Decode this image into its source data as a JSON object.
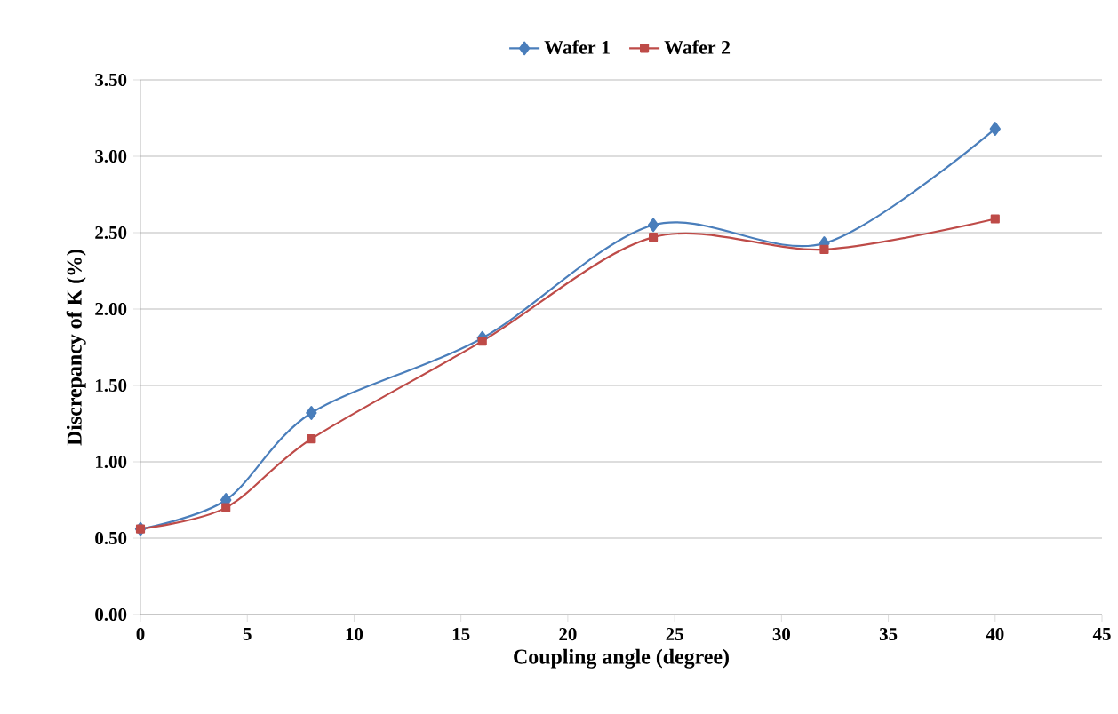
{
  "chart_data": {
    "type": "line",
    "xlabel": "Coupling angle (degree)",
    "ylabel": "Discrepancy of K (%)",
    "x": [
      0,
      4,
      8,
      16,
      24,
      32,
      40
    ],
    "series": [
      {
        "name": "Wafer 1",
        "color": "#4a7ebb",
        "marker": "diamond",
        "values": [
          0.56,
          0.75,
          1.32,
          1.81,
          2.55,
          2.43,
          3.18
        ]
      },
      {
        "name": "Wafer 2",
        "color": "#be4b48",
        "marker": "square",
        "values": [
          0.56,
          0.7,
          1.15,
          1.79,
          2.47,
          2.39,
          2.59
        ]
      }
    ],
    "xlim": [
      0,
      45
    ],
    "xticks": [
      0,
      5,
      10,
      15,
      20,
      25,
      30,
      35,
      40,
      45
    ],
    "ylim": [
      0,
      3.5
    ],
    "yticks": [
      {
        "value": 0,
        "label": "0.00"
      },
      {
        "value": 0.5,
        "label": "0.50"
      },
      {
        "value": 1,
        "label": "1.00"
      },
      {
        "value": 1.5,
        "label": "1.50"
      },
      {
        "value": 2,
        "label": "2.00"
      },
      {
        "value": 2.5,
        "label": "2.50"
      },
      {
        "value": 3,
        "label": "3.00"
      },
      {
        "value": 3.5,
        "label": "3.50"
      }
    ],
    "grid": "y",
    "legend": "top",
    "line_style": "solid"
  }
}
